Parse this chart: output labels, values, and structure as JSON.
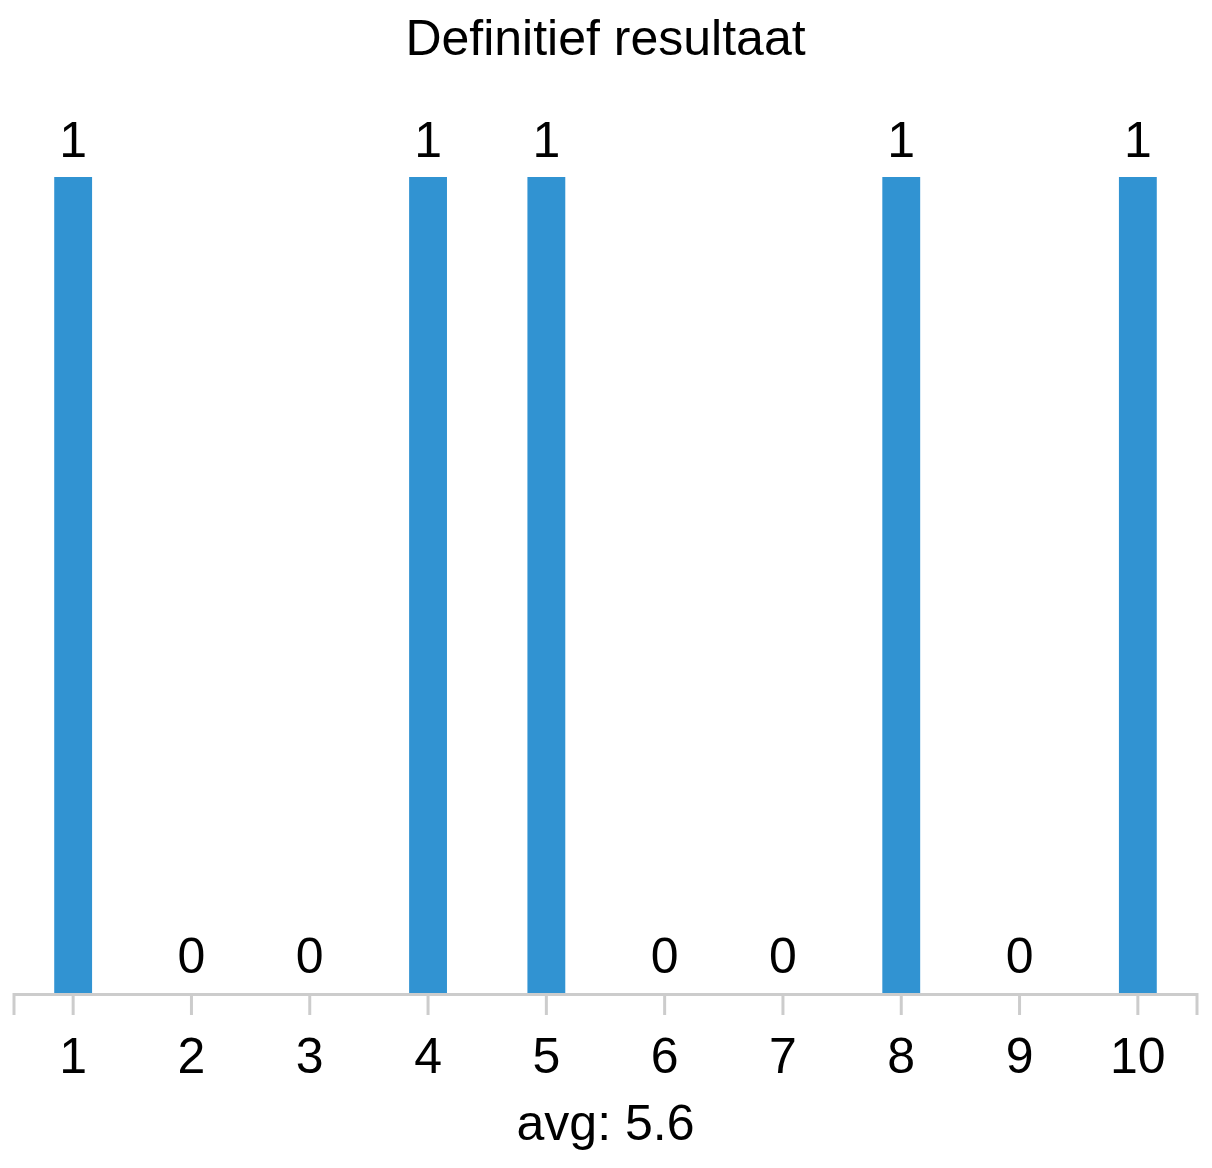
{
  "chart_data": {
    "type": "bar",
    "title": "Definitief resultaat",
    "annotations": [
      "avg: 5.6"
    ],
    "x": [
      1,
      2,
      3,
      4,
      5,
      6,
      7,
      8,
      9,
      10
    ],
    "xlim": [
      0.5,
      10.5
    ],
    "xticks": [
      1,
      2,
      3,
      4,
      5,
      6,
      7,
      8,
      9,
      10
    ],
    "values": [
      1,
      0,
      0,
      1,
      1,
      0,
      0,
      1,
      0,
      1
    ],
    "color": "#3193d2",
    "data_labels": true
  }
}
